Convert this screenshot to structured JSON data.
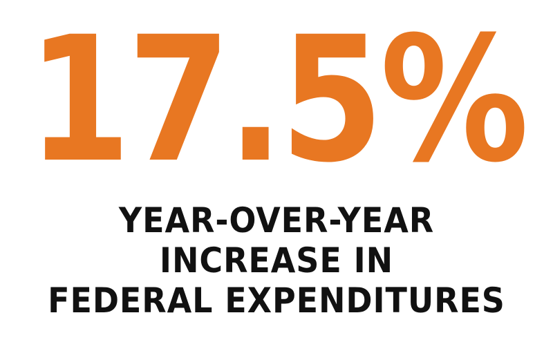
{
  "stat": {
    "value": "17.5%",
    "color": "#e87722"
  },
  "caption": {
    "lines": [
      "YEAR-OVER-YEAR",
      "INCREASE IN",
      "FEDERAL EXPENDITURES"
    ],
    "color": "#111111"
  }
}
